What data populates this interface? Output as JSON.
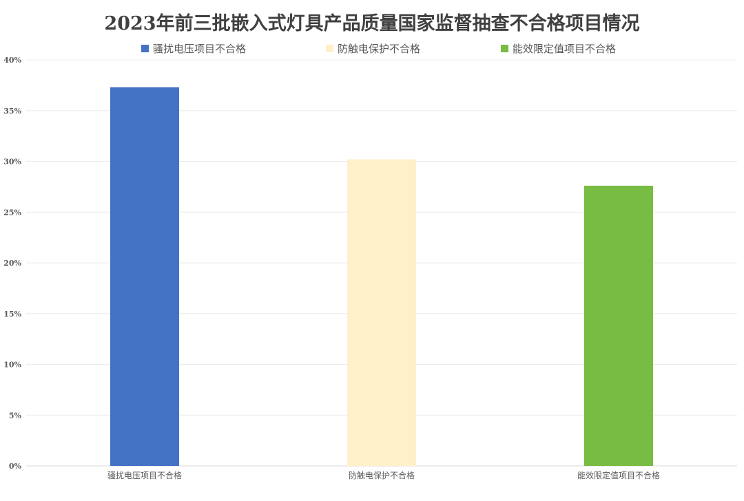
{
  "chart_data": {
    "type": "bar",
    "title": "2023年前三批嵌入式灯具产品质量国家监督抽查不合格项目情况",
    "categories": [
      "骚扰电压项目不合格",
      "防触电保护不合格",
      "能效限定值项目不合格"
    ],
    "values": [
      0.373,
      0.302,
      0.276
    ],
    "colors": [
      "#4472C4",
      "#FFF0C9",
      "#78BC43"
    ],
    "legend": [
      "骚扰电压项目不合格",
      "防触电保护不合格",
      "能效限定值项目不合格"
    ],
    "legend_position": "top",
    "ylim": [
      0,
      0.4
    ],
    "yticks": [
      0,
      0.05,
      0.1,
      0.15,
      0.2,
      0.25,
      0.3,
      0.35,
      0.4
    ],
    "ytick_labels": [
      "0%",
      "5%",
      "10%",
      "15%",
      "20%",
      "25%",
      "30%",
      "35%",
      "40%"
    ],
    "xlabel": "",
    "ylabel": "",
    "grid": true
  }
}
